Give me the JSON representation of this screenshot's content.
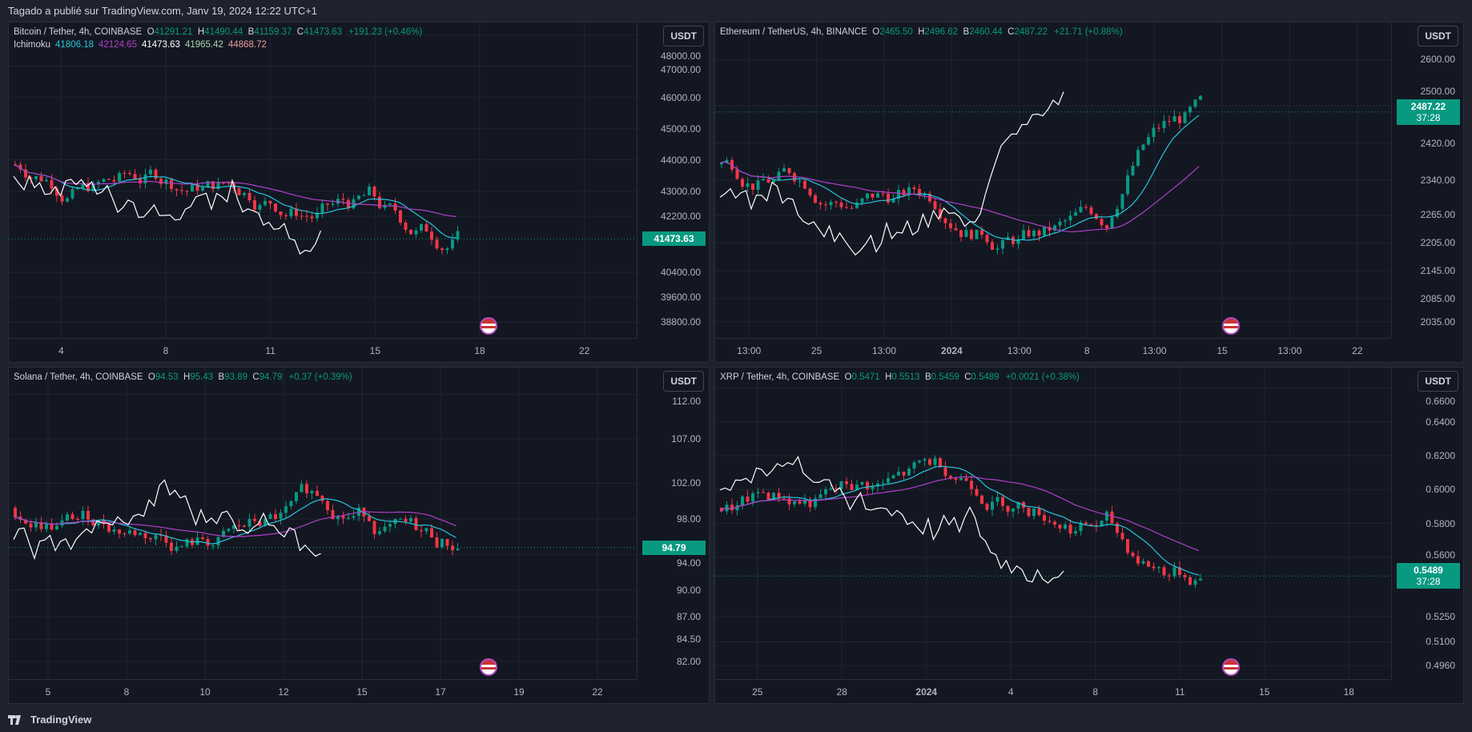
{
  "header": {
    "published": "Tagado a publié sur TradingView.com, Janv 19, 2024 12:22 UTC+1"
  },
  "footer": {
    "brand": "TradingView",
    "logo_icon": "tradingview-logo-icon"
  },
  "colors": {
    "up": "#089981",
    "down": "#f23645",
    "bg": "#131722",
    "tenkan": "#2962ff",
    "kijun": "#b03fc9",
    "chikou": "#ffffff"
  },
  "panels": [
    {
      "title": "Bitcoin / Tether, 4h, COINBASE",
      "o": "41291.21",
      "h": "41490.44",
      "b": "41159.37",
      "c": "41473.63",
      "chg": "+191.23 (+0.46%)",
      "ichimoku": {
        "label": "Ichimoku",
        "v": [
          "41806.18",
          "42124.65",
          "41473.63",
          "41965.42",
          "44868.72"
        ]
      },
      "currency": "USDT",
      "current": "41473.63",
      "countdown": "",
      "y_ticks": [
        "48000.00",
        "47000.00",
        "46000.00",
        "45000.00",
        "44000.00",
        "43000.00",
        "42200.00",
        "40400.00",
        "39600.00",
        "38800.00"
      ],
      "y_vals": [
        48000,
        47000,
        46000,
        45000,
        44000,
        43000,
        42200,
        40400,
        39600,
        38800
      ],
      "y_range": [
        38300,
        48400
      ],
      "current_val": 41473.63,
      "x_ticks": [
        "4",
        "8",
        "11",
        "15",
        "18",
        "22"
      ]
    },
    {
      "title": "Ethereum / TetherUS, 4h, BINANCE",
      "o": "2465.50",
      "h": "2496.62",
      "b": "2460.44",
      "c": "2487.22",
      "chg": "+21.71 (+0.88%)",
      "currency": "USDT",
      "current": "2487.22",
      "countdown": "37:28",
      "y_ticks": [
        "2600.00",
        "2500.00",
        "2420.00",
        "2340.00",
        "2265.00",
        "2205.00",
        "2145.00",
        "2085.00",
        "2035.00"
      ],
      "y_vals": [
        2600,
        2500,
        2420,
        2340,
        2265,
        2205,
        2145,
        2085,
        2035
      ],
      "y_range": [
        2000,
        2680
      ],
      "current_val": 2487.22,
      "x_ticks": [
        "13:00",
        "25",
        "13:00",
        "2024",
        "13:00",
        "8",
        "13:00",
        "15",
        "13:00",
        "22"
      ]
    },
    {
      "title": "Solana / Tether, 4h, COINBASE",
      "o": "94.53",
      "h": "95.43",
      "b": "93.89",
      "c": "94.79",
      "chg": "+0.37 (+0.39%)",
      "currency": "USDT",
      "current": "94.79",
      "countdown": "",
      "y_ticks": [
        "112.00",
        "107.00",
        "102.00",
        "98.00",
        "94.00",
        "90.00",
        "87.00",
        "84.50",
        "82.00"
      ],
      "y_vals": [
        112,
        107,
        102,
        98,
        94,
        90,
        87,
        84.5,
        82
      ],
      "y_range": [
        80,
        115
      ],
      "current_val": 94.79,
      "x_ticks": [
        "5",
        "8",
        "10",
        "12",
        "15",
        "17",
        "19",
        "22"
      ]
    },
    {
      "title": "XRP / Tether, 4h, COINBASE",
      "o": "0.5471",
      "h": "0.5513",
      "b": "0.5459",
      "c": "0.5489",
      "chg": "+0.0021 (+0.38%)",
      "currency": "USDT",
      "current": "0.5489",
      "countdown": "37:28",
      "y_ticks": [
        "0.6600",
        "0.6400",
        "0.6200",
        "0.6000",
        "0.5800",
        "0.5600",
        "0.5250",
        "0.5100",
        "0.4960"
      ],
      "y_vals": [
        0.66,
        0.64,
        0.62,
        0.6,
        0.58,
        0.56,
        0.525,
        0.51,
        0.496
      ],
      "y_range": [
        0.488,
        0.672
      ],
      "current_val": 0.5489,
      "x_ticks": [
        "25",
        "28",
        "2024",
        "4",
        "8",
        "11",
        "15",
        "18"
      ]
    }
  ]
}
